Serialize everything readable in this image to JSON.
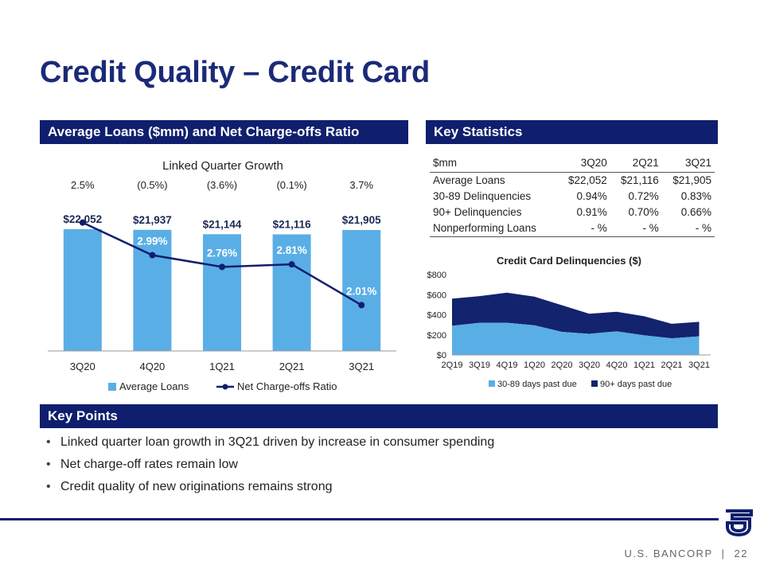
{
  "title": "Credit Quality – Credit Card",
  "sections": {
    "left_header": "Average Loans ($mm) and Net Charge-offs Ratio",
    "right_header": "Key Statistics",
    "points_header": "Key Points"
  },
  "key_stats": {
    "columns": [
      "$mm",
      "3Q20",
      "2Q21",
      "3Q21"
    ],
    "rows": [
      [
        "Average Loans",
        "$22,052",
        "$21,116",
        "$21,905"
      ],
      [
        "30-89 Delinquencies",
        "0.94%",
        "0.72%",
        "0.83%"
      ],
      [
        "90+ Delinquencies",
        "0.91%",
        "0.70%",
        "0.66%"
      ],
      [
        "Nonperforming Loans",
        "- %",
        "- %",
        "- %"
      ]
    ]
  },
  "key_points": {
    "bullet": "•",
    "items": [
      "Linked quarter loan growth in 3Q21 driven by increase in consumer spending",
      "Net charge-off rates remain low",
      "Credit quality of new originations remains strong"
    ]
  },
  "footer": {
    "company": "U.S. BANCORP",
    "separator": "|",
    "page": "22"
  },
  "colors": {
    "navy": "#0f1f6e",
    "bar": "#5aaee6",
    "dark_area": "#14236e"
  },
  "chart_data": [
    {
      "type": "bar",
      "title": "Linked Quarter Growth",
      "categories": [
        "3Q20",
        "4Q20",
        "1Q21",
        "2Q21",
        "3Q21"
      ],
      "growth_labels": [
        "2.5%",
        "(0.5%)",
        "(3.6%)",
        "(0.1%)",
        "3.7%"
      ],
      "series": [
        {
          "name": "Average Loans",
          "type": "bar",
          "values": [
            22052,
            21937,
            21144,
            21116,
            21905
          ],
          "labels": [
            "$22,052",
            "$21,937",
            "$21,144",
            "$21,116",
            "$21,905"
          ]
        },
        {
          "name": "Net Charge-offs Ratio",
          "type": "line",
          "values": [
            3.63,
            2.99,
            2.76,
            2.81,
            2.01
          ],
          "labels": [
            "3.63%",
            "2.99%",
            "2.76%",
            "2.81%",
            "2.01%"
          ]
        }
      ],
      "legend": "bottom"
    },
    {
      "type": "area",
      "title": "Credit Card Delinquencies ($)",
      "categories": [
        "2Q19",
        "3Q19",
        "4Q19",
        "1Q20",
        "2Q20",
        "3Q20",
        "4Q20",
        "1Q21",
        "2Q21",
        "3Q21"
      ],
      "yticks": [
        "$0",
        "$200",
        "$400",
        "$600",
        "$800"
      ],
      "ylim": [
        0,
        800
      ],
      "series": [
        {
          "name": "30-89 days past due",
          "values": [
            290,
            320,
            320,
            295,
            230,
            210,
            235,
            195,
            165,
            185
          ]
        },
        {
          "name": "90+ days past due",
          "values": [
            270,
            265,
            300,
            285,
            265,
            200,
            195,
            190,
            145,
            145
          ]
        }
      ],
      "legend": "bottom"
    }
  ]
}
